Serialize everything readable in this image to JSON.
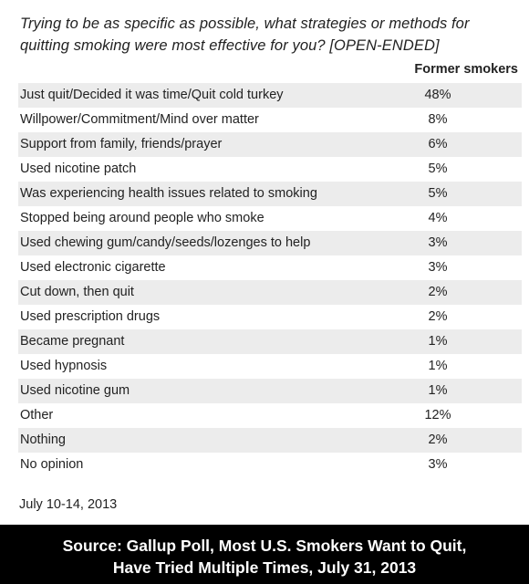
{
  "question_line1": "Trying to be as specific as possible, what strategies or methods for",
  "question_line2": "quitting smoking were most effective for you? [OPEN-ENDED]",
  "column_header": "Former smokers",
  "date": "July 10-14, 2013",
  "source_line1": "Source: Gallup Poll, Most U.S. Smokers Want to Quit,",
  "source_line2": "Have Tried Multiple Times, July 31, 2013",
  "chart_data": {
    "type": "table",
    "columns": [
      "Former smokers"
    ],
    "rows": [
      {
        "label": "Just quit/Decided it was time/Quit cold turkey",
        "value": "48%"
      },
      {
        "label": "Willpower/Commitment/Mind over matter",
        "value": "8%"
      },
      {
        "label": "Support from family, friends/prayer",
        "value": "6%"
      },
      {
        "label": "Used nicotine patch",
        "value": "5%"
      },
      {
        "label": "Was experiencing health issues related to smoking",
        "value": "5%"
      },
      {
        "label": "Stopped being around people who smoke",
        "value": "4%"
      },
      {
        "label": "Used chewing gum/candy/seeds/lozenges to help",
        "value": "3%"
      },
      {
        "label": "Used electronic cigarette",
        "value": "3%"
      },
      {
        "label": "Cut down, then quit",
        "value": "2%"
      },
      {
        "label": "Used prescription drugs",
        "value": "2%"
      },
      {
        "label": "Became pregnant",
        "value": "1%"
      },
      {
        "label": "Used hypnosis",
        "value": "1%"
      },
      {
        "label": "Used nicotine gum",
        "value": "1%"
      },
      {
        "label": "Other",
        "value": "12%"
      },
      {
        "label": "Nothing",
        "value": "2%"
      },
      {
        "label": "No opinion",
        "value": "3%"
      }
    ]
  }
}
